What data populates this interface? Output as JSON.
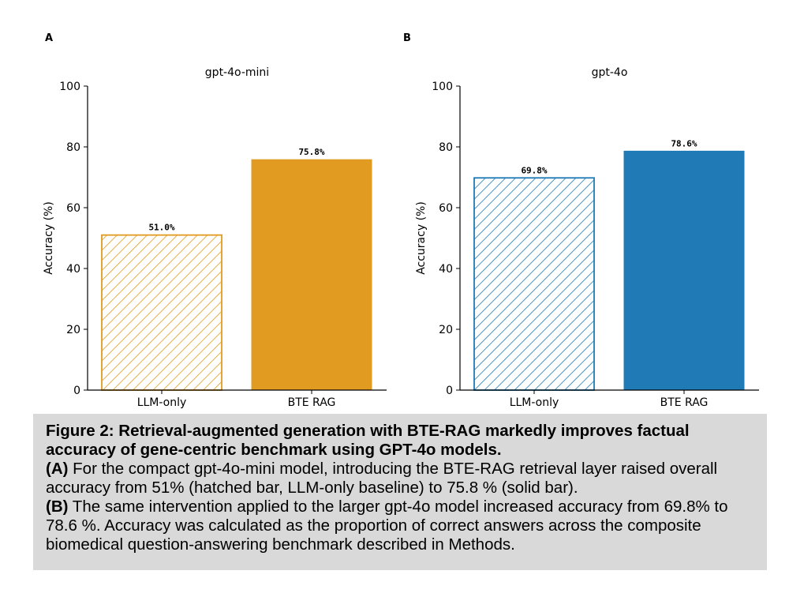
{
  "chart_data": [
    {
      "type": "bar",
      "panel_label": "A",
      "title": "gpt-4o-mini",
      "categories": [
        "LLM-only",
        "BTE RAG"
      ],
      "values": [
        51.0,
        75.8
      ],
      "value_labels": [
        "51.0%",
        "75.8%"
      ],
      "styles": [
        "hatched",
        "solid"
      ],
      "color": "#e09b20",
      "xlabel": "",
      "ylabel": "Accuracy (%)",
      "ylim": [
        0,
        100
      ],
      "yticks": [
        "0",
        "20",
        "40",
        "60",
        "80",
        "100"
      ]
    },
    {
      "type": "bar",
      "panel_label": "B",
      "title": "gpt-4o",
      "categories": [
        "LLM-only",
        "BTE RAG"
      ],
      "values": [
        69.8,
        78.6
      ],
      "value_labels": [
        "69.8%",
        "78.6%"
      ],
      "styles": [
        "hatched",
        "solid"
      ],
      "color": "#1f7ab5",
      "xlabel": "",
      "ylabel": "Accuracy (%)",
      "ylim": [
        0,
        100
      ],
      "yticks": [
        "0",
        "20",
        "40",
        "60",
        "80",
        "100"
      ]
    }
  ],
  "caption": {
    "title": "Figure 2: Retrieval-augmented generation with BTE-RAG markedly improves factual accuracy of gene-centric benchmark using GPT-4o models.",
    "a_label": "(A)",
    "a_text": " For the compact gpt-4o-mini model, introducing the BTE-RAG retrieval layer raised overall accuracy from 51% (hatched bar, LLM-only baseline) to 75.8 % (solid bar).",
    "b_label": "(B)",
    "b_text": " The same intervention applied to the larger gpt-4o model increased accuracy from 69.8% to 78.6 %. Accuracy was calculated as the proportion of correct answers across the composite biomedical question-answering benchmark described in Methods."
  }
}
